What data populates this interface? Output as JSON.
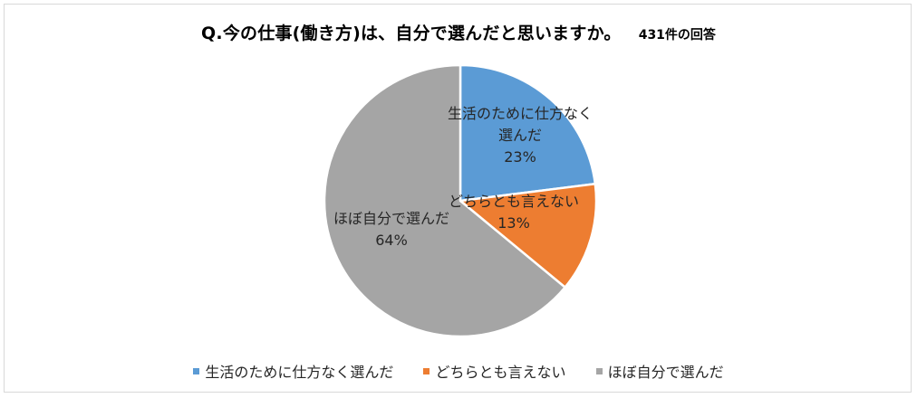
{
  "chart_data": {
    "type": "pie",
    "title": "Q.今の仕事(働き方)は、自分で選んだと思いますか。",
    "subtitle": "431件の回答",
    "legend_position": "bottom",
    "slices": [
      {
        "label_lines": [
          "生活のために仕方なく",
          "選んだ"
        ],
        "legend": "生活のために仕方なく選んだ",
        "value": 23,
        "value_label": "23%",
        "color": "#5b9bd5"
      },
      {
        "label_lines": [
          "どちらとも言えない"
        ],
        "legend": "どちらとも言えない",
        "value": 13,
        "value_label": "13%",
        "color": "#ed7d31"
      },
      {
        "label_lines": [
          "ほぼ自分で選んだ"
        ],
        "legend": "ほぼ自分で選んだ",
        "value": 64,
        "value_label": "64%",
        "color": "#a5a5a5"
      }
    ]
  }
}
